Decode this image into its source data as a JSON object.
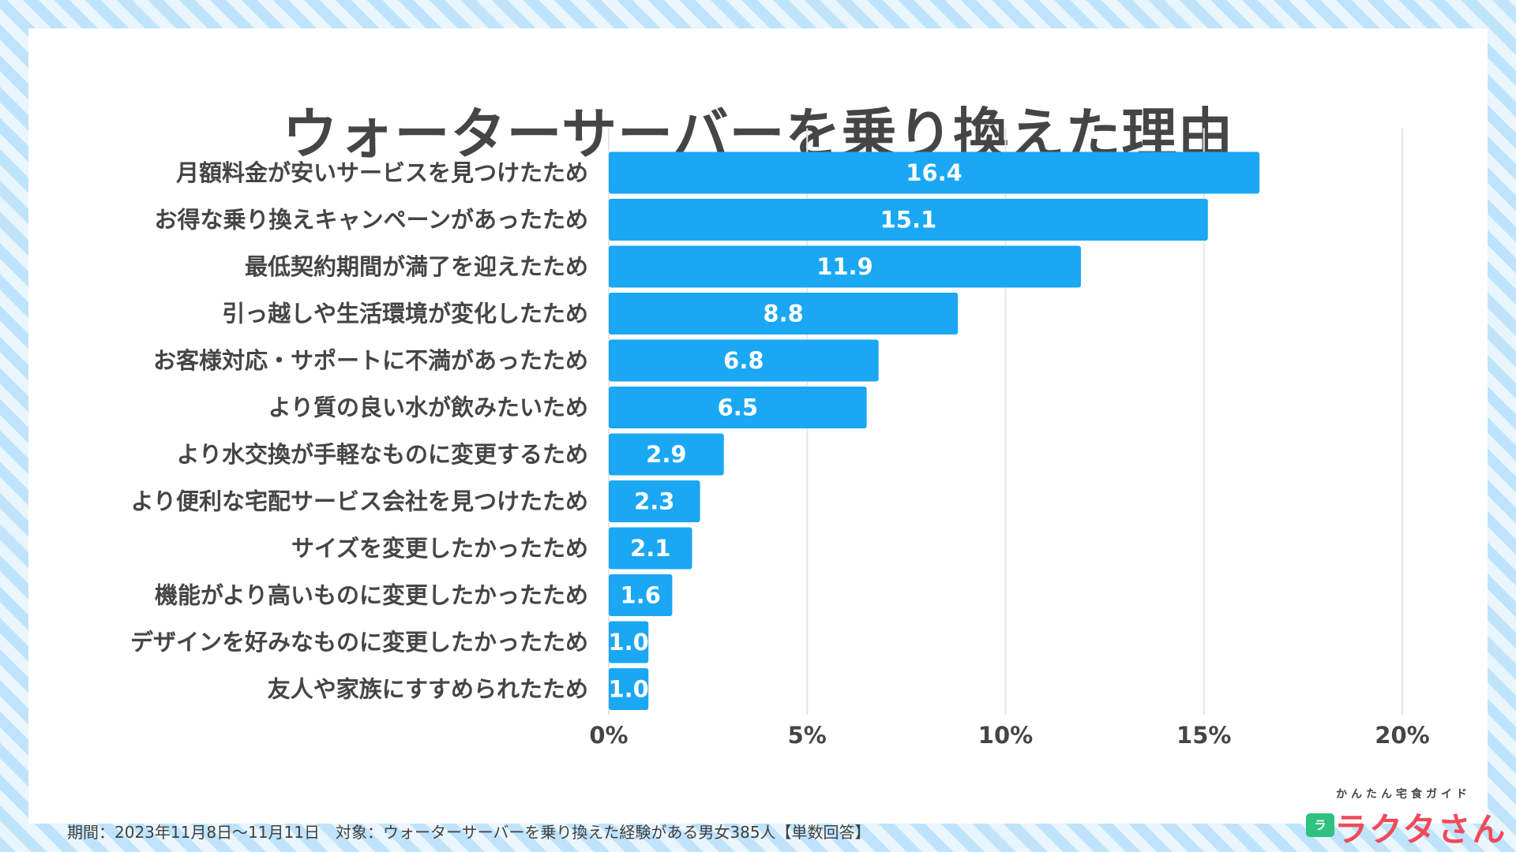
{
  "chart_data": {
    "type": "bar",
    "orientation": "horizontal",
    "title": "ウォーターサーバーを乗り換えた理由",
    "categories": [
      "月額料金が安いサービスを見つけたため",
      "お得な乗り換えキャンペーンがあったため",
      "最低契約期間が満了を迎えたため",
      "引っ越しや生活環境が変化したため",
      "お客様対応・サポートに不満があったため",
      "より質の良い水が飲みたいため",
      "より水交換が手軽なものに変更するため",
      "より便利な宅配サービス会社を見つけたため",
      "サイズを変更したかったため",
      "機能がより高いものに変更したかったため",
      "デザインを好みなものに変更したかったため",
      "友人や家族にすすめられたため"
    ],
    "values": [
      16.4,
      15.1,
      11.9,
      8.8,
      6.8,
      6.5,
      2.9,
      2.3,
      2.1,
      1.6,
      1.0,
      1.0
    ],
    "value_labels": [
      "16.4",
      "15.1",
      "11.9",
      "8.8",
      "6.8",
      "6.5",
      "2.9",
      "2.3",
      "2.1",
      "1.6",
      "1.0",
      "1.0"
    ],
    "xticks": [
      0,
      5,
      10,
      15,
      20
    ],
    "xtick_labels": [
      "0%",
      "5%",
      "10%",
      "15%",
      "20%"
    ],
    "xlim": [
      0,
      20
    ],
    "grid": true,
    "bar_color": "#1aa7f4",
    "xlabel": "",
    "ylabel": ""
  },
  "footer": {
    "note": "期間：2023年11月8日〜11月11日　対象：ウォーターサーバーを乗り換えた経験がある男女385人【単数回答】"
  },
  "logo": {
    "tagline": "かんたん宅食ガイド",
    "badge": "ラ",
    "name": "ラクタさん"
  },
  "colors": {
    "title": "#454545",
    "bar": "#1aa7f4",
    "grid": "#e6e6e6",
    "logo": "#ef4a5b"
  }
}
